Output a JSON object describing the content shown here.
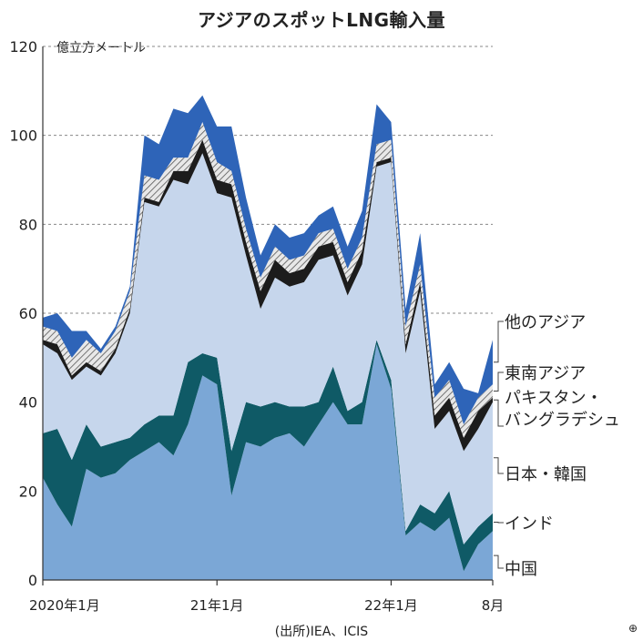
{
  "chart_data": {
    "type": "area",
    "stacked": true,
    "title": "アジアのスポットLNG輸入量",
    "ylabel": "億立方メートル",
    "ylim": [
      0,
      120
    ],
    "yticks": [
      0,
      20,
      40,
      60,
      80,
      100,
      120
    ],
    "x_tick_labels": [
      {
        "index": 0,
        "label": "2020年1月"
      },
      {
        "index": 12,
        "label": "21年1月"
      },
      {
        "index": 24,
        "label": "22年1月"
      },
      {
        "index": 31,
        "label": "8月"
      }
    ],
    "x": [
      "2020-01",
      "2020-02",
      "2020-03",
      "2020-04",
      "2020-05",
      "2020-06",
      "2020-07",
      "2020-08",
      "2020-09",
      "2020-10",
      "2020-11",
      "2020-12",
      "2021-01",
      "2021-02",
      "2021-03",
      "2021-04",
      "2021-05",
      "2021-06",
      "2021-07",
      "2021-08",
      "2021-09",
      "2021-10",
      "2021-11",
      "2021-12",
      "2022-01",
      "2022-02",
      "2022-03",
      "2022-04",
      "2022-05",
      "2022-06",
      "2022-07",
      "2022-08"
    ],
    "series": [
      {
        "name": "中国",
        "color": "#7ba7d6",
        "values": [
          23,
          17,
          12,
          25,
          23,
          24,
          27,
          29,
          31,
          28,
          35,
          46,
          44,
          19,
          31,
          30,
          32,
          33,
          30,
          35,
          40,
          35,
          35,
          53,
          43,
          10,
          13,
          11,
          14,
          2,
          8,
          11
        ]
      },
      {
        "name": "インド",
        "color": "#0f5a66",
        "values": [
          10,
          17,
          15,
          10,
          7,
          7,
          5,
          6,
          6,
          9,
          14,
          5,
          6,
          10,
          9,
          9,
          8,
          6,
          9,
          5,
          8,
          3,
          5,
          1,
          2,
          1,
          4,
          4,
          6,
          6,
          4,
          4
        ]
      },
      {
        "name": "日本・韓国",
        "color": "#c6d6ec",
        "values": [
          20,
          17,
          18,
          13,
          16,
          20,
          28,
          50,
          47,
          53,
          40,
          45,
          37,
          57,
          33,
          22,
          28,
          27,
          28,
          32,
          25,
          26,
          31,
          39,
          49,
          40,
          48,
          19,
          18,
          21,
          22,
          25
        ]
      },
      {
        "name": "パキスタン・バングラデシュ",
        "color": "#1c1c1c",
        "values": [
          1,
          2,
          1,
          1,
          1,
          1,
          1,
          1,
          1,
          2,
          3,
          3,
          3,
          3,
          3,
          4,
          4,
          3,
          3,
          3,
          3,
          3,
          3,
          1,
          1,
          2,
          2,
          3,
          3,
          3,
          4,
          1
        ]
      },
      {
        "name": "東南アジア",
        "color": "#a8a8a8",
        "values": [
          3,
          3,
          4,
          5,
          4,
          4,
          4,
          5,
          5,
          3,
          3,
          4,
          4,
          3,
          3,
          3,
          3,
          3,
          3,
          3,
          3,
          3,
          3,
          4,
          4,
          4,
          4,
          4,
          4,
          3,
          3,
          3
        ]
      },
      {
        "name": "他のアジア",
        "color": "#2e64b8",
        "values": [
          2,
          4,
          6,
          2,
          1,
          1,
          1,
          9,
          8,
          11,
          10,
          6,
          8,
          10,
          7,
          5,
          5,
          5,
          5,
          4,
          5,
          5,
          6,
          9,
          4,
          4,
          7,
          3,
          4,
          8,
          1,
          10
        ]
      }
    ],
    "grid": "dashed"
  },
  "source": "(出所)IEA、ICIS",
  "logo_mark": "⊕"
}
